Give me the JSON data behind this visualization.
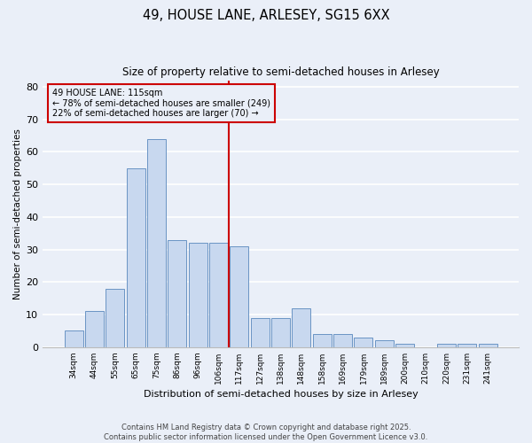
{
  "title": "49, HOUSE LANE, ARLESEY, SG15 6XX",
  "subtitle": "Size of property relative to semi-detached houses in Arlesey",
  "xlabel": "Distribution of semi-detached houses by size in Arlesey",
  "ylabel": "Number of semi-detached properties",
  "categories": [
    "34sqm",
    "44sqm",
    "55sqm",
    "65sqm",
    "75sqm",
    "86sqm",
    "96sqm",
    "106sqm",
    "117sqm",
    "127sqm",
    "138sqm",
    "148sqm",
    "158sqm",
    "169sqm",
    "179sqm",
    "189sqm",
    "200sqm",
    "210sqm",
    "220sqm",
    "231sqm",
    "241sqm"
  ],
  "values": [
    5,
    11,
    18,
    55,
    64,
    33,
    32,
    32,
    31,
    9,
    9,
    12,
    4,
    4,
    3,
    2,
    1,
    0,
    1,
    1,
    1
  ],
  "bar_color": "#c8d8ef",
  "bar_edge_color": "#6a94c4",
  "background_color": "#eaeff8",
  "grid_color": "#ffffff",
  "ylim": [
    0,
    82
  ],
  "yticks": [
    0,
    10,
    20,
    30,
    40,
    50,
    60,
    70,
    80
  ],
  "vline_x_index": 8,
  "vline_color": "#cc0000",
  "annotation_title": "49 HOUSE LANE: 115sqm",
  "annotation_line1": "← 78% of semi-detached houses are smaller (249)",
  "annotation_line2": "22% of semi-detached houses are larger (70) →",
  "annotation_box_color": "#cc0000",
  "footer_line1": "Contains HM Land Registry data © Crown copyright and database right 2025.",
  "footer_line2": "Contains public sector information licensed under the Open Government Licence v3.0."
}
